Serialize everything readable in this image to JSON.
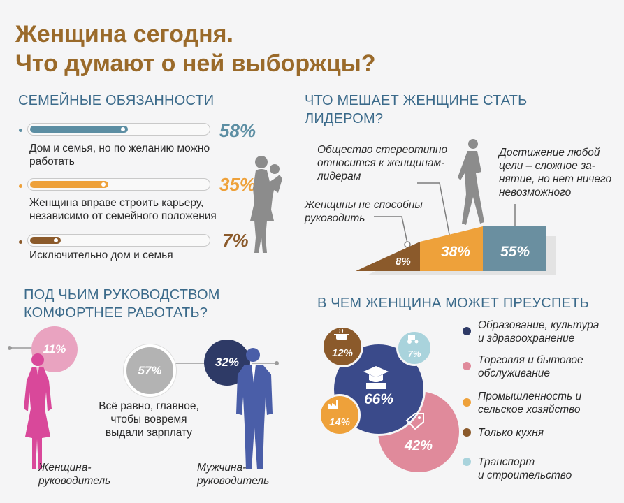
{
  "title": {
    "line1": "Женщина сегодня.",
    "line2": "Что думают о ней выборжцы?"
  },
  "family": {
    "heading": "СЕМЕЙНЫЕ ОБЯЗАННОСТИ",
    "items": [
      {
        "pct": "58%",
        "value": 58,
        "color": "#5c8ea3",
        "text1": "Дом и семья, но по желанию можно",
        "text2": "работать"
      },
      {
        "pct": "35%",
        "value": 35,
        "color": "#eea13a",
        "text1": "Женщина вправе строить карьеру,",
        "text2": "независимо от семейного положения"
      },
      {
        "pct": "7%",
        "value": 7,
        "color": "#8b5a2b",
        "text1": "Исключительно дом и семья",
        "text2": ""
      }
    ]
  },
  "leader": {
    "heading1": "ЧТО МЕШАЕТ ЖЕНЩИНЕ СТАТЬ",
    "heading2": "ЛИДЕРОМ?",
    "society": [
      "Общество стереотипно",
      "относится к женщинам-",
      "лидерам"
    ],
    "achieve": [
      "Достижение любой",
      "цели – сложное за-",
      "нятие, но нет ничего",
      "невозможного"
    ],
    "notable": [
      "Женщины не способны",
      "руководить"
    ],
    "pct_small": "8%",
    "pct_mid": "38%",
    "pct_big": "55%",
    "colors": {
      "small": "#8b5a2b",
      "mid": "#eea13a",
      "big": "#6a8fa0"
    }
  },
  "boss": {
    "heading1": "ПОД ЧЬИМ РУКОВОДСТВОМ",
    "heading2": "КОМФОРТНЕЕ РАБОТАТЬ?",
    "woman_pct": "11%",
    "neutral_pct": "57%",
    "man_pct": "32%",
    "neutral_text": [
      "Всё равно, главное,",
      "чтобы вовремя",
      "выдали зарплату"
    ],
    "woman_label": [
      "Женщина-",
      "руководитель"
    ],
    "man_label": [
      "Мужчина-",
      "руководитель"
    ],
    "colors": {
      "woman": "#e07fa3",
      "neutral": "#b3b3b3",
      "man": "#2e3a66",
      "man_figure": "#4a5ea8"
    }
  },
  "success": {
    "heading": "В ЧЕМ ЖЕНЩИНА МОЖЕТ ПРЕУСПЕТЬ",
    "bubbles": {
      "edu": "66%",
      "trade": "42%",
      "industry": "14%",
      "kitchen": "12%",
      "transport": "7%"
    },
    "legend": [
      {
        "text1": "Образование, культура",
        "text2": "и здравоохранение",
        "color": "#2e3a66"
      },
      {
        "text1": "Торговля и бытовое",
        "text2": "обслуживание",
        "color": "#e08a9b"
      },
      {
        "text1": "Промышленность и",
        "text2": "сельское хозяйство",
        "color": "#eea13a"
      },
      {
        "text1": "Только кухня",
        "text2": "",
        "color": "#8b5a2b"
      },
      {
        "text1": "Транспорт",
        "text2": "и строительство",
        "color": "#a9d3dc"
      }
    ]
  }
}
